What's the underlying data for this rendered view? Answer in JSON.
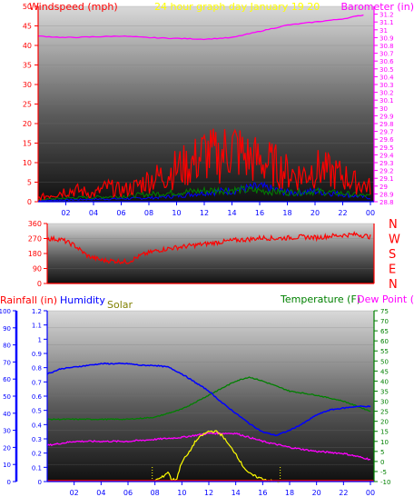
{
  "colors": {
    "windspeed": "#ff0000",
    "windgust": "#0000ff",
    "windavg": "#008000",
    "barometer": "#ff00ff",
    "winddir": "#ff0000",
    "humidity": "#0000ff",
    "temperature": "#008000",
    "dewpoint": "#ff00ff",
    "solar": "#ffff00",
    "rainfall": "#ff0000",
    "title": "#ffff00",
    "axis_left": "#ff0000",
    "axis_right_baro": "#ff00ff",
    "axis_hum": "#0000ff",
    "axis_temp": "#008000",
    "axis_solar": "#808000"
  },
  "chart_data": [
    {
      "type": "line",
      "name": "wind-barometer",
      "title": "24 hour graph day   January 19 20",
      "ylabel_left": "Windspeed (mph)",
      "ylabel_right": "Barometer (in)",
      "yticks_left": [
        "0",
        "5",
        "10",
        "15",
        "20",
        "25",
        "30",
        "35",
        "40",
        "45",
        "50"
      ],
      "yticks_right": [
        "28.8",
        "28.9",
        "29",
        "29.1",
        "29.2",
        "29.3",
        "29.4",
        "29.5",
        "29.6",
        "29.7",
        "29.8",
        "29.9",
        "30",
        "30.1",
        "30.2",
        "30.3",
        "30.4",
        "30.5",
        "30.6",
        "30.7",
        "30.8",
        "30.9",
        "31",
        "31.1",
        "31.2"
      ],
      "xticks": [
        "02",
        "04",
        "06",
        "08",
        "10",
        "12",
        "14",
        "16",
        "18",
        "20",
        "22",
        "00"
      ],
      "ylim_left": [
        0,
        50
      ],
      "ylim_right": [
        28.8,
        31.3
      ],
      "series": [
        {
          "key": "barometer",
          "axis": "right",
          "x": [
            0,
            2,
            4,
            6,
            8,
            10,
            12,
            14,
            16,
            18,
            20,
            22,
            23.5
          ],
          "values": [
            30.92,
            30.9,
            30.91,
            30.92,
            30.9,
            30.89,
            30.88,
            30.9,
            30.98,
            31.06,
            31.1,
            31.14,
            31.19
          ]
        },
        {
          "key": "windspeed",
          "axis": "left",
          "x": [
            0,
            1,
            2,
            3,
            4,
            5,
            6,
            7,
            8,
            9,
            10,
            11,
            12,
            13,
            14,
            15,
            16,
            17,
            18,
            19,
            20,
            21,
            22,
            23,
            24
          ],
          "values": [
            1,
            2,
            3,
            3,
            2,
            4,
            3,
            4,
            6,
            7,
            9,
            10,
            13,
            12,
            15,
            12,
            11,
            10,
            8,
            7,
            9,
            8,
            7,
            5,
            4
          ]
        },
        {
          "key": "windavg",
          "axis": "left",
          "x": [
            0,
            2,
            4,
            6,
            8,
            10,
            12,
            14,
            16,
            18,
            20,
            22,
            24
          ],
          "values": [
            0.5,
            1,
            1.2,
            1.5,
            2,
            2.5,
            3,
            3.2,
            3,
            2.5,
            2.8,
            2.2,
            1.5
          ]
        },
        {
          "key": "windgust",
          "axis": "left",
          "x": [
            0,
            2,
            4,
            6,
            8,
            10,
            12,
            14,
            16,
            18,
            20,
            22,
            24
          ],
          "values": [
            0.3,
            0.5,
            0.7,
            0.8,
            1,
            1.5,
            2.5,
            3,
            4,
            2.5,
            2.8,
            2,
            1
          ]
        }
      ]
    },
    {
      "type": "line",
      "name": "wind-direction",
      "yticks_left": [
        "0",
        "90",
        "180",
        "270",
        "360"
      ],
      "dir_labels": [
        "N",
        "W",
        "S",
        "E",
        "N"
      ],
      "xticks": [],
      "ylim": [
        0,
        360
      ],
      "series": [
        {
          "key": "winddir",
          "x": [
            0,
            1,
            2,
            3,
            4,
            5,
            6,
            7,
            8,
            9,
            10,
            11,
            12,
            13,
            14,
            15,
            16,
            17,
            18,
            19,
            20,
            21,
            22,
            23,
            24
          ],
          "values": [
            270,
            265,
            230,
            165,
            140,
            135,
            130,
            170,
            195,
            210,
            220,
            230,
            240,
            250,
            260,
            265,
            275,
            270,
            275,
            280,
            275,
            285,
            290,
            295,
            280
          ]
        }
      ]
    },
    {
      "type": "line",
      "name": "temp-hum-solar",
      "ylabel_rain": "Rainfall (in)",
      "ylabel_hum": "Humidity",
      "ylabel_solar": "Solar",
      "ylabel_temp": "Temperature (F)",
      "ylabel_dew": "Dew Point (",
      "yticks_hum": [
        "0",
        "10",
        "20",
        "30",
        "40",
        "50",
        "60",
        "70",
        "80",
        "90",
        "100"
      ],
      "yticks_rain": [
        "0",
        "0.1",
        "0.2",
        "0.3",
        "0.4",
        "0.5",
        "0.6",
        "0.7",
        "0.8",
        "0.9",
        "1",
        "1.1",
        "1.2"
      ],
      "yticks_temp": [
        "-10",
        "-5",
        "0",
        "5",
        "10",
        "15",
        "20",
        "25",
        "30",
        "35",
        "40",
        "45",
        "50",
        "55",
        "60",
        "65",
        "70",
        "75"
      ],
      "xticks": [
        "02",
        "04",
        "06",
        "08",
        "10",
        "12",
        "14",
        "16",
        "18",
        "20",
        "22",
        "00"
      ],
      "ylim_hum": [
        0,
        100
      ],
      "ylim_temp": [
        -10,
        75
      ],
      "series": [
        {
          "key": "humidity",
          "axis": "hum",
          "x": [
            0,
            1,
            2,
            3,
            4,
            5,
            6,
            7,
            8,
            9,
            10,
            11,
            12,
            13,
            14,
            15,
            16,
            17,
            18,
            19,
            20,
            21,
            22,
            23,
            24
          ],
          "values": [
            63,
            66,
            67,
            68,
            69,
            69,
            69,
            68,
            68,
            67,
            63,
            58,
            53,
            46,
            40,
            34,
            29,
            27,
            30,
            34,
            39,
            42,
            43,
            44,
            44
          ]
        },
        {
          "key": "temperature",
          "axis": "temp",
          "x": [
            0,
            2,
            4,
            6,
            8,
            10,
            12,
            14,
            15,
            16,
            18,
            20,
            22,
            24
          ],
          "values": [
            21,
            21,
            21,
            21,
            22,
            26,
            33,
            40,
            42,
            40,
            35,
            33,
            30,
            25
          ]
        },
        {
          "key": "dewpoint",
          "axis": "temp",
          "x": [
            0,
            2,
            4,
            6,
            8,
            10,
            12,
            14,
            16,
            18,
            20,
            22,
            24
          ],
          "values": [
            8,
            10,
            10,
            10,
            11,
            12,
            14,
            14,
            10,
            7,
            5,
            4,
            1
          ]
        },
        {
          "key": "solar",
          "axis": "temp",
          "x": [
            7.8,
            8.5,
            9,
            9.2,
            9.6,
            10,
            10.5,
            11,
            11.5,
            12,
            12.5,
            13,
            13.5,
            14,
            14.5,
            15,
            15.3,
            15.7,
            16.2,
            16.8,
            17.3
          ],
          "values": [
            -10,
            -8,
            -5,
            -9,
            -9,
            0,
            4,
            10,
            13,
            15,
            15,
            13,
            8,
            4,
            -2,
            -6,
            -7,
            -8,
            -9,
            -10,
            -10
          ]
        }
      ]
    }
  ]
}
